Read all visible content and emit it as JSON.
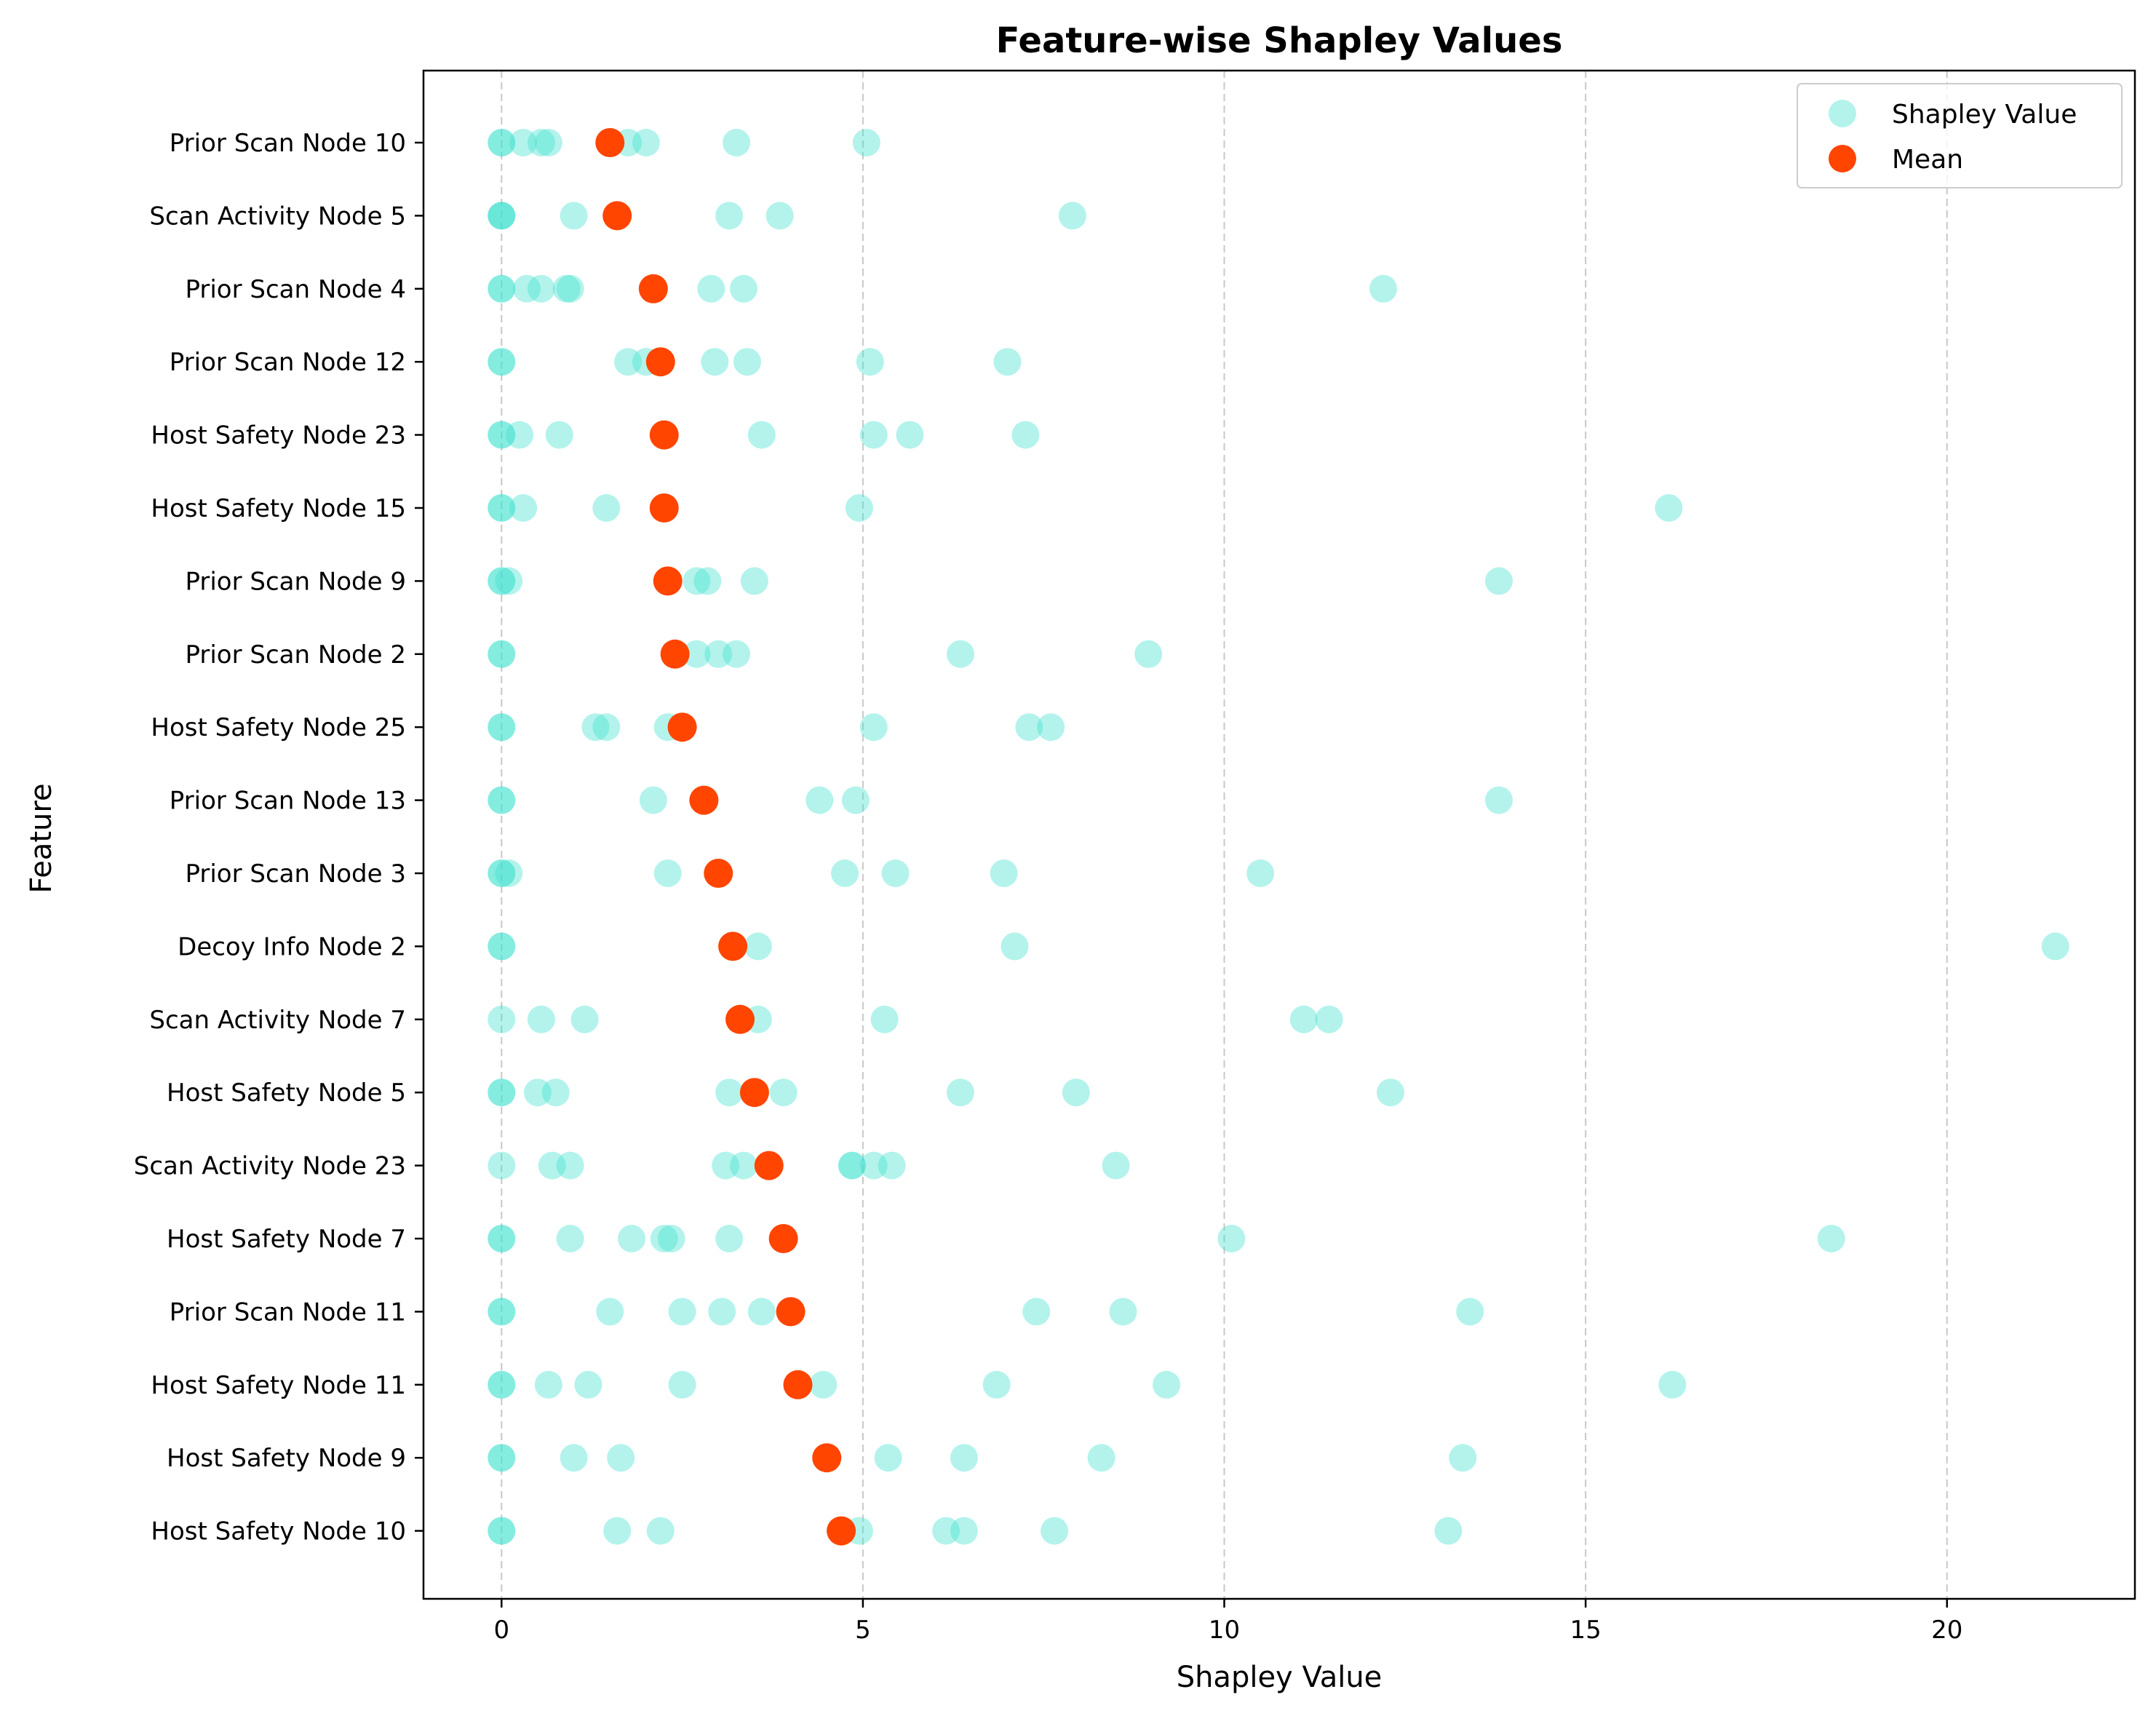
{
  "chart_data": {
    "type": "scatter",
    "title": "Feature-wise Shapley Values",
    "xlabel": "Shapley Value",
    "ylabel": "Feature",
    "xlim": [
      -1.08,
      22.6
    ],
    "xticks": [
      0,
      5,
      10,
      15,
      20
    ],
    "xtick_labels": [
      "0",
      "5",
      "10",
      "15",
      "20"
    ],
    "grid": "x-dashed",
    "legend_position": "top-right",
    "colors": {
      "points": "#40e0d0",
      "mean": "#ff4500"
    },
    "legend": [
      {
        "label": "Shapley Value",
        "color": "#40e0d0",
        "alpha": 0.4
      },
      {
        "label": "Mean",
        "color": "#ff4500",
        "alpha": 1.0
      }
    ],
    "features": [
      {
        "name": "Prior Scan Node 10",
        "values": [
          0,
          0,
          0.3,
          0.55,
          0.65,
          1.75,
          2.0,
          3.25,
          5.05
        ],
        "mean": 1.5
      },
      {
        "name": "Scan Activity Node 5",
        "values": [
          0,
          0,
          0,
          1.0,
          3.15,
          3.85,
          7.9
        ],
        "mean": 1.6
      },
      {
        "name": "Prior Scan Node 4",
        "values": [
          0,
          0,
          0.35,
          0.55,
          0.9,
          0.95,
          2.9,
          3.35,
          12.2
        ],
        "mean": 2.1
      },
      {
        "name": "Prior Scan Node 12",
        "values": [
          0,
          0,
          1.75,
          2.0,
          2.95,
          3.4,
          5.1,
          7.0
        ],
        "mean": 2.2
      },
      {
        "name": "Host Safety Node 23",
        "values": [
          0,
          0,
          0.25,
          0.8,
          3.6,
          5.15,
          5.65,
          7.25
        ],
        "mean": 2.25
      },
      {
        "name": "Host Safety Node 15",
        "values": [
          0,
          0,
          0.3,
          1.45,
          4.95,
          16.15
        ],
        "mean": 2.25
      },
      {
        "name": "Prior Scan Node 9",
        "values": [
          0,
          0,
          0.1,
          2.7,
          2.85,
          3.5,
          13.8
        ],
        "mean": 2.3
      },
      {
        "name": "Prior Scan Node 2",
        "values": [
          0,
          0,
          2.7,
          3.0,
          3.25,
          6.35,
          8.95
        ],
        "mean": 2.4
      },
      {
        "name": "Host Safety Node 25",
        "values": [
          0,
          0,
          1.3,
          1.45,
          2.3,
          5.15,
          7.3,
          7.6
        ],
        "mean": 2.5
      },
      {
        "name": "Prior Scan Node 13",
        "values": [
          0,
          0,
          2.1,
          4.4,
          4.9,
          13.8
        ],
        "mean": 2.8
      },
      {
        "name": "Prior Scan Node 3",
        "values": [
          0,
          0,
          0.1,
          2.3,
          4.75,
          5.45,
          6.95,
          10.5
        ],
        "mean": 3.0
      },
      {
        "name": "Decoy Info Node 2",
        "values": [
          0,
          0,
          3.55,
          7.1,
          21.5
        ],
        "mean": 3.2
      },
      {
        "name": "Scan Activity Node 7",
        "values": [
          0,
          0.55,
          1.15,
          3.55,
          5.3,
          11.1,
          11.45
        ],
        "mean": 3.3
      },
      {
        "name": "Host Safety Node 5",
        "values": [
          0,
          0,
          0.5,
          0.75,
          3.15,
          3.9,
          6.35,
          7.95,
          12.3
        ],
        "mean": 3.5
      },
      {
        "name": "Scan Activity Node 23",
        "values": [
          0,
          0.7,
          0.95,
          3.1,
          3.35,
          4.85,
          4.85,
          5.15,
          5.4,
          8.5
        ],
        "mean": 3.7
      },
      {
        "name": "Host Safety Node 7",
        "values": [
          0,
          0,
          0.95,
          1.8,
          2.25,
          2.35,
          3.15,
          10.1,
          18.4
        ],
        "mean": 3.9
      },
      {
        "name": "Prior Scan Node 11",
        "values": [
          0,
          0,
          1.5,
          2.5,
          3.05,
          3.6,
          7.4,
          8.6,
          13.4
        ],
        "mean": 4.0
      },
      {
        "name": "Host Safety Node 11",
        "values": [
          0,
          0,
          0.65,
          1.2,
          2.5,
          4.45,
          6.85,
          9.2,
          16.2
        ],
        "mean": 4.1
      },
      {
        "name": "Host Safety Node 9",
        "values": [
          0,
          0,
          1.0,
          1.65,
          5.35,
          6.4,
          8.3,
          13.3
        ],
        "mean": 4.5
      },
      {
        "name": "Host Safety Node 10",
        "values": [
          0,
          0,
          1.6,
          2.2,
          4.95,
          6.15,
          6.4,
          7.65,
          13.1
        ],
        "mean": 4.7
      }
    ]
  }
}
